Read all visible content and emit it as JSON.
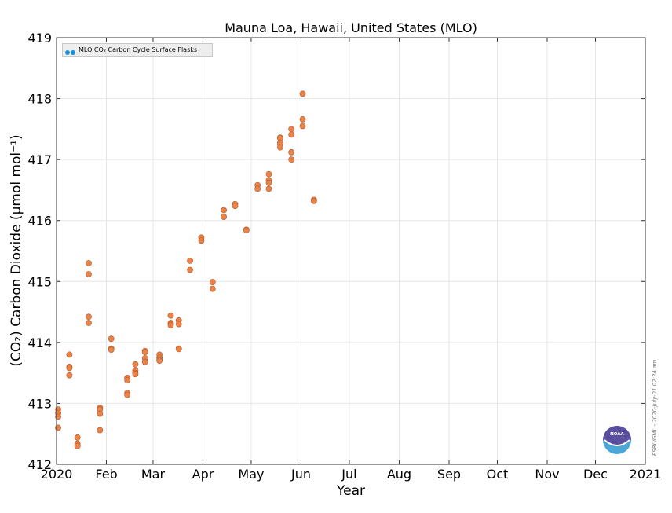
{
  "chart_data": {
    "type": "scatter",
    "title": "Mauna Loa, Hawaii, United States (MLO)",
    "xlabel": "Year",
    "ylabel": "(CO₂) Carbon Dioxide (μmol mol⁻¹)",
    "xlim": [
      0,
      366
    ],
    "ylim": [
      412,
      419
    ],
    "yticks": [
      412,
      413,
      414,
      415,
      416,
      417,
      418,
      419
    ],
    "xticks": [
      {
        "day": 0,
        "label": "2020"
      },
      {
        "day": 31,
        "label": "Feb"
      },
      {
        "day": 60,
        "label": "Mar"
      },
      {
        "day": 91,
        "label": "Apr"
      },
      {
        "day": 121,
        "label": "May"
      },
      {
        "day": 152,
        "label": "Jun"
      },
      {
        "day": 182,
        "label": "Jul"
      },
      {
        "day": 213,
        "label": "Aug"
      },
      {
        "day": 244,
        "label": "Sep"
      },
      {
        "day": 274,
        "label": "Oct"
      },
      {
        "day": 305,
        "label": "Nov"
      },
      {
        "day": 335,
        "label": "Dec"
      },
      {
        "day": 366,
        "label": "2021"
      }
    ],
    "grid": true,
    "legend_position": "top-left",
    "series": [
      {
        "name": "MLO CO₂ Carbon Cycle Surface Flasks",
        "legend_color": "#1a8fd6",
        "marker_color": "#e8834a",
        "points": [
          [
            1,
            412.9
          ],
          [
            1,
            412.84
          ],
          [
            1,
            412.78
          ],
          [
            1,
            412.6
          ],
          [
            8,
            413.8
          ],
          [
            8,
            413.6
          ],
          [
            8,
            413.58
          ],
          [
            8,
            413.46
          ],
          [
            13,
            412.44
          ],
          [
            13,
            412.34
          ],
          [
            13,
            412.3
          ],
          [
            20,
            415.3
          ],
          [
            20,
            415.12
          ],
          [
            20,
            414.42
          ],
          [
            20,
            414.32
          ],
          [
            27,
            412.93
          ],
          [
            27,
            412.9
          ],
          [
            27,
            412.83
          ],
          [
            27,
            412.56
          ],
          [
            34,
            414.06
          ],
          [
            34,
            413.9
          ],
          [
            34,
            413.88
          ],
          [
            44,
            413.42
          ],
          [
            44,
            413.38
          ],
          [
            44,
            413.17
          ],
          [
            44,
            413.14
          ],
          [
            49,
            413.64
          ],
          [
            49,
            413.54
          ],
          [
            49,
            413.5
          ],
          [
            49,
            413.48
          ],
          [
            55,
            413.86
          ],
          [
            55,
            413.84
          ],
          [
            55,
            413.74
          ],
          [
            55,
            413.68
          ],
          [
            64,
            413.8
          ],
          [
            64,
            413.75
          ],
          [
            64,
            413.72
          ],
          [
            64,
            413.7
          ],
          [
            71,
            414.44
          ],
          [
            71,
            414.32
          ],
          [
            71,
            414.3
          ],
          [
            71,
            414.28
          ],
          [
            76,
            414.36
          ],
          [
            76,
            414.3
          ],
          [
            76,
            413.9
          ],
          [
            76,
            413.89
          ],
          [
            83,
            415.34
          ],
          [
            83,
            415.19
          ],
          [
            90,
            415.72
          ],
          [
            90,
            415.67
          ],
          [
            97,
            414.99
          ],
          [
            97,
            414.88
          ],
          [
            104,
            416.17
          ],
          [
            104,
            416.06
          ],
          [
            111,
            416.27
          ],
          [
            111,
            416.24
          ],
          [
            118,
            415.85
          ],
          [
            118,
            415.84
          ],
          [
            125,
            416.58
          ],
          [
            125,
            416.52
          ],
          [
            132,
            416.76
          ],
          [
            132,
            416.66
          ],
          [
            132,
            416.62
          ],
          [
            132,
            416.52
          ],
          [
            139,
            417.36
          ],
          [
            139,
            417.35
          ],
          [
            139,
            417.27
          ],
          [
            139,
            417.2
          ],
          [
            146,
            417.5
          ],
          [
            146,
            417.41
          ],
          [
            146,
            417.12
          ],
          [
            146,
            417.0
          ],
          [
            153,
            418.08
          ],
          [
            153,
            417.66
          ],
          [
            153,
            417.55
          ],
          [
            160,
            416.34
          ],
          [
            160,
            416.32
          ]
        ]
      }
    ],
    "credit": "ESRL/GML - 2020-July-01 02:24 am",
    "logo_text": "NOAA"
  }
}
